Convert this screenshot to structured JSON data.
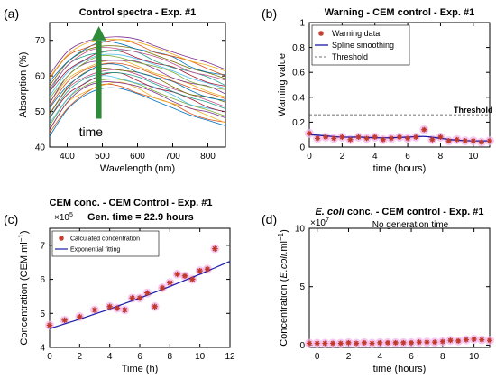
{
  "colors": {
    "spline": "#1a1aa8",
    "marker": "#c0392b",
    "halo": "#f3b8ee",
    "arrow": "#2e8b3a",
    "threshold": "#444444",
    "spectra": [
      "#0072bd",
      "#d95319",
      "#edb120",
      "#7e2f8e",
      "#77ac30",
      "#4dbeee",
      "#a2142f",
      "#1f9e89",
      "#c04f8a",
      "#6f6f00"
    ]
  },
  "chart_data": [
    {
      "panel": "(a)",
      "type": "line",
      "title": "Control spectra - Exp. #1",
      "xlabel": "Wavelength (nm)",
      "ylabel": "Absorption (%)",
      "xlim": [
        350,
        850
      ],
      "ylim": [
        40,
        75
      ],
      "xticks": [
        400,
        500,
        600,
        700,
        800
      ],
      "yticks": [
        40,
        50,
        60,
        70
      ],
      "arrow_label": "time",
      "series_count": 24,
      "series_values": {
        "x": [
          350,
          400,
          450,
          500,
          550,
          600,
          650,
          700,
          750,
          800,
          850
        ],
        "min_curve": [
          43,
          50.5,
          54.5,
          56.5,
          56.5,
          55,
          53,
          51,
          49,
          47.5,
          46
        ],
        "max_curve": [
          60.5,
          66.5,
          69.5,
          71,
          71,
          70,
          68.5,
          67,
          65,
          63.5,
          62
        ]
      }
    },
    {
      "panel": "(b)",
      "type": "scatter",
      "title": "Warning - CEM control - Exp. #1",
      "xlabel": "time (hours)",
      "ylabel": "Warning value",
      "xlim": [
        0,
        11
      ],
      "ylim": [
        0,
        1
      ],
      "xticks": [
        0,
        2,
        4,
        6,
        8,
        10
      ],
      "yticks": [
        0,
        0.2,
        0.4,
        0.6,
        0.8,
        1
      ],
      "threshold": 0.26,
      "threshold_label": "Threshold",
      "legend": [
        "Warning data",
        "Spline smoothing",
        "Threshold"
      ],
      "points": {
        "x": [
          0,
          0.5,
          1,
          1.5,
          2,
          2.5,
          3,
          3.5,
          4,
          4.5,
          5,
          5.5,
          6,
          6.5,
          7,
          7.5,
          8,
          8.5,
          9,
          9.5,
          10,
          10.5,
          11
        ],
        "y": [
          0.11,
          0.07,
          0.08,
          0.07,
          0.08,
          0.06,
          0.08,
          0.07,
          0.08,
          0.06,
          0.07,
          0.08,
          0.07,
          0.08,
          0.14,
          0.06,
          0.08,
          0.05,
          0.06,
          0.05,
          0.05,
          0.04,
          0.05
        ]
      },
      "spline": {
        "x": [
          0,
          1,
          2,
          3,
          4,
          5,
          6,
          7,
          8,
          9,
          10,
          11
        ],
        "y": [
          0.1,
          0.09,
          0.08,
          0.08,
          0.075,
          0.075,
          0.08,
          0.085,
          0.07,
          0.055,
          0.05,
          0.05
        ]
      }
    },
    {
      "panel": "(c)",
      "type": "scatter",
      "title": "CEM conc. - CEM Control - Exp. #1",
      "annotation": "Gen. time = 22.9 hours",
      "scale_label": "×10",
      "scale_exp": "5",
      "xlabel": "Time (h)",
      "ylabel": "Concentration (CEM.ml",
      "ylabel_sup": "−1",
      "ylabel_end": ")",
      "xlim": [
        0,
        12
      ],
      "ylim": [
        4,
        7.5
      ],
      "xticks": [
        0,
        2,
        4,
        6,
        8,
        10,
        12
      ],
      "yticks": [
        4,
        5,
        6,
        7
      ],
      "legend": [
        "Calculated concentration",
        "Exponential fitting"
      ],
      "points": {
        "x": [
          0,
          1,
          2,
          3,
          4,
          4.5,
          5,
          5.5,
          6,
          6.5,
          7,
          7.5,
          8,
          8.5,
          9,
          9.5,
          10,
          10.5,
          11
        ],
        "y": [
          4.65,
          4.8,
          4.9,
          5.1,
          5.2,
          5.15,
          5.1,
          5.45,
          5.45,
          5.6,
          5.2,
          5.75,
          5.9,
          6.15,
          6.1,
          6.0,
          6.25,
          6.3,
          6.9
        ]
      },
      "fit": {
        "x": [
          0,
          1,
          2,
          3,
          4,
          5,
          6,
          7,
          8,
          9,
          10,
          11,
          12
        ],
        "y": [
          4.55,
          4.69,
          4.83,
          4.98,
          5.13,
          5.29,
          5.45,
          5.62,
          5.79,
          5.97,
          6.15,
          6.34,
          6.53
        ]
      }
    },
    {
      "panel": "(d)",
      "type": "scatter",
      "title_italic": "E. coli",
      "title_rest": " conc. - CEM control - Exp. #1",
      "annotation": "No generation time",
      "scale_label": "×10",
      "scale_exp": "7",
      "xlabel": "time (hours)",
      "ylabel": "Concentration (",
      "ylabel_italic": "E.coli",
      "ylabel_mid": ".ml",
      "ylabel_sup": "−1",
      "ylabel_end": ")",
      "xlim": [
        -0.5,
        11
      ],
      "ylim": [
        -0.2,
        10
      ],
      "xticks": [
        0,
        2,
        4,
        6,
        8,
        10
      ],
      "yticks": [
        0,
        5,
        10
      ],
      "points": {
        "x": [
          -0.5,
          0,
          0.5,
          1,
          1.5,
          2,
          2.5,
          3,
          3.5,
          4,
          4.5,
          5,
          5.5,
          6,
          6.5,
          7,
          7.5,
          8,
          8.5,
          9,
          9.5,
          10,
          10.5,
          11
        ],
        "y": [
          0.15,
          0.15,
          0.15,
          0.15,
          0.15,
          0.2,
          0.15,
          0.2,
          0.15,
          0.2,
          0.2,
          0.2,
          0.2,
          0.2,
          0.25,
          0.25,
          0.25,
          0.3,
          0.4,
          0.35,
          0.45,
          0.5,
          0.45,
          0.4
        ]
      }
    }
  ]
}
